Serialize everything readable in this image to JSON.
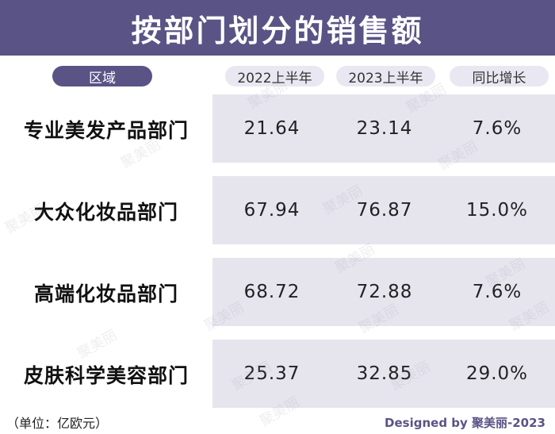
{
  "chart_data": {
    "type": "table",
    "title": "按部门划分的销售额",
    "columns": [
      "区域",
      "2022上半年",
      "2023上半年",
      "同比增长"
    ],
    "rows": [
      {
        "name": "专业美发产品部门",
        "h1_2022": "21.64",
        "h1_2023": "23.14",
        "growth": "7.6%"
      },
      {
        "name": "大众化妆品部门",
        "h1_2022": "67.94",
        "h1_2023": "76.87",
        "growth": "15.0%"
      },
      {
        "name": "高端化妆品部门",
        "h1_2022": "68.72",
        "h1_2023": "72.88",
        "growth": "7.6%"
      },
      {
        "name": "皮肤科学美容部门",
        "h1_2022": "25.37",
        "h1_2023": "32.85",
        "growth": "29.0%"
      }
    ],
    "unit_note": "（单位：亿欧元）",
    "credit": "Designed by 聚美丽-2023",
    "watermark": "聚美丽"
  },
  "colors": {
    "accent": "#5a5386",
    "header_pill_light": "#e9e7f1",
    "row_panel": "#e6e5ee"
  }
}
